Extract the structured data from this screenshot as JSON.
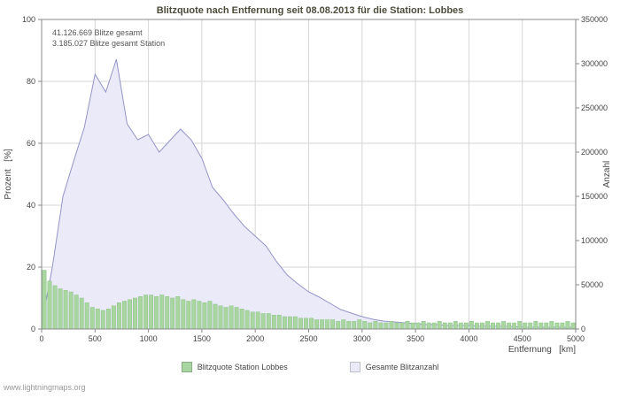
{
  "title": "Blitzquote nach Entfernung seit 08.08.2013 für die Station: Lobbes",
  "annotations": {
    "line1": "41.126.669 Blitze gesamt",
    "line2": "3.185.027 Blitze gesamt Station"
  },
  "watermark": "www.lightningmaps.org",
  "legend": [
    {
      "label": "Blitzquote Station Lobbes",
      "color": "#a9d6a0"
    },
    {
      "label": "Gesamte Blitzanzahl",
      "color": "#eaeaf8"
    }
  ],
  "colors": {
    "bar_fill": "#a9d6a0",
    "bar_stroke": "#8cc489",
    "area_fill": "#eaeaf8",
    "area_line": "#9494c8",
    "grid": "#d6d6d6",
    "axis": "#8a8a8a",
    "title_text": "#4c4c3a"
  },
  "chart_data": {
    "type": "mixed",
    "title": "Blitzquote nach Entfernung seit 08.08.2013 für die Station: Lobbes",
    "x_axis": {
      "label": "Entfernung   [km]",
      "range": [
        0,
        5000
      ],
      "ticks": [
        0,
        500,
        1000,
        1500,
        2000,
        2500,
        3000,
        3500,
        4000,
        4500,
        5000
      ]
    },
    "y_left": {
      "label": "Prozent   [%]",
      "range": [
        0,
        100
      ],
      "ticks": [
        0,
        20,
        40,
        60,
        80,
        100
      ]
    },
    "y_right": {
      "label": "Anzahl",
      "range": [
        0,
        350000
      ],
      "ticks": [
        0,
        50000,
        100000,
        150000,
        200000,
        250000,
        300000,
        350000
      ]
    },
    "grid": true,
    "legend_position": "bottom",
    "series": [
      {
        "name": "Blitzquote Station Lobbes",
        "type": "bar",
        "axis": "left",
        "unit": "%",
        "bin_width_km": 50,
        "x_start_km": 0,
        "values_percent": [
          19,
          15.5,
          14,
          13,
          12.5,
          12,
          11,
          10,
          8.5,
          7,
          6.5,
          6,
          6.5,
          7.5,
          8.5,
          9,
          9.5,
          10,
          10.5,
          11,
          11,
          10.5,
          11,
          10.5,
          10,
          10.5,
          9.5,
          9,
          9.5,
          9,
          8.5,
          9,
          8,
          7.5,
          7,
          7.5,
          7,
          6.5,
          6,
          5.5,
          5.5,
          5,
          5,
          4.5,
          4.5,
          4,
          4,
          4,
          3.5,
          3.5,
          3.5,
          3,
          3,
          3,
          3,
          2.5,
          3,
          2.5,
          2.5,
          3,
          2.5,
          2,
          2.5,
          2,
          2,
          2.5,
          2,
          2,
          2.5,
          2,
          2,
          2.5,
          2,
          2,
          2.5,
          2,
          2,
          2.5,
          2,
          2,
          2.5,
          2,
          2,
          2.5,
          2,
          2,
          2.5,
          2,
          2,
          2.5,
          2,
          2,
          2.5,
          2,
          2,
          2.5,
          2,
          2,
          2.5,
          2
        ]
      },
      {
        "name": "Gesamte Blitzanzahl",
        "type": "area",
        "axis": "right",
        "unit": "count",
        "x_step_km": 100,
        "x_start_km": 0,
        "values": [
          5000,
          70000,
          150000,
          190000,
          228000,
          288000,
          268000,
          305000,
          232000,
          214000,
          220000,
          200000,
          213000,
          226000,
          214000,
          193000,
          160000,
          146000,
          130000,
          116000,
          105000,
          94000,
          76000,
          61000,
          51000,
          42000,
          36000,
          29000,
          22000,
          18000,
          14000,
          11000,
          9000,
          8000,
          7000,
          6000,
          5000,
          5000,
          4000,
          4000,
          4000,
          3000,
          3000,
          3000,
          3000,
          2000,
          2000,
          2000,
          2000,
          2000,
          2000
        ]
      }
    ]
  }
}
